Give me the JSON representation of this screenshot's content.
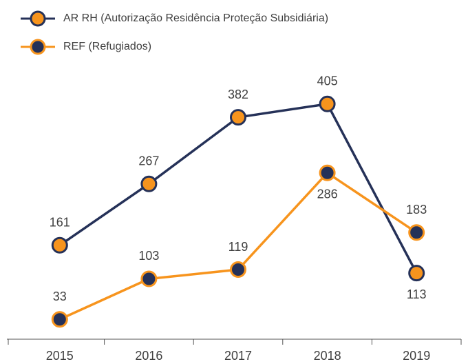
{
  "chart_data": {
    "type": "line",
    "categories": [
      "2015",
      "2016",
      "2017",
      "2018",
      "2019"
    ],
    "series": [
      {
        "name": "AR RH (Autorização Residência Proteção Subsidiária)",
        "color": "#253158",
        "marker_color": "#f7941d",
        "values": [
          161,
          267,
          382,
          405,
          113
        ]
      },
      {
        "name": "REF (Refugiados)",
        "color": "#f7941d",
        "marker_color": "#253158",
        "values": [
          33,
          103,
          119,
          286,
          183
        ]
      }
    ],
    "ylim": [
      0,
      500
    ]
  }
}
